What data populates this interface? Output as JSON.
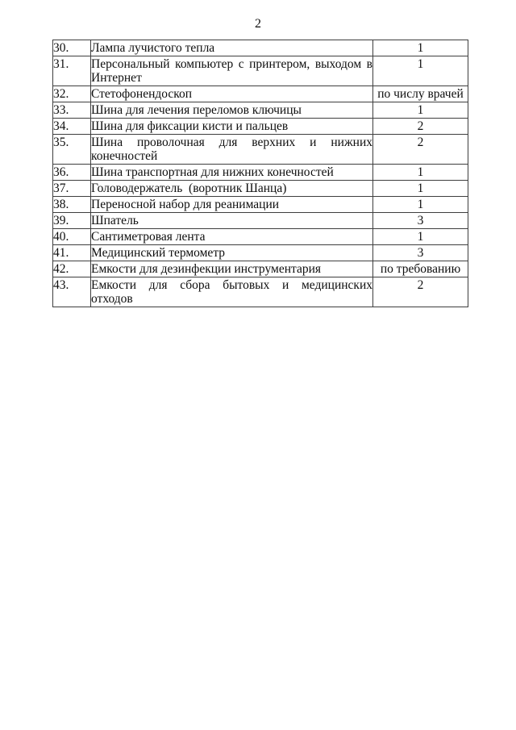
{
  "page": {
    "number": "2"
  },
  "table": {
    "rows": [
      {
        "num": "30.",
        "name_lines": [
          "Лампа лучистого тепла"
        ],
        "qty": "1"
      },
      {
        "num": "31.",
        "name_lines": [
          "Персональный компьютер с принтером, выходом в",
          "Интернет"
        ],
        "qty": "1"
      },
      {
        "num": "32.",
        "name_lines": [
          "Стетофонендоскоп"
        ],
        "qty": "по числу врачей"
      },
      {
        "num": "33.",
        "name_lines": [
          "Шина для лечения переломов ключицы"
        ],
        "qty": "1"
      },
      {
        "num": "34.",
        "name_lines": [
          "Шина для фиксации кисти и пальцев"
        ],
        "qty": "2"
      },
      {
        "num": "35.",
        "name_lines": [
          "Шина проволочная для верхних и нижних",
          "конечностей"
        ],
        "qty": "2"
      },
      {
        "num": "36.",
        "name_lines": [
          "Шина транспортная для нижних конечностей"
        ],
        "qty": "1"
      },
      {
        "num": "37.",
        "name_lines": [
          "Головодержатель  (воротник Шанца)"
        ],
        "qty": "1"
      },
      {
        "num": "38.",
        "name_lines": [
          "Переносной набор для реанимации"
        ],
        "qty": "1"
      },
      {
        "num": "39.",
        "name_lines": [
          "Шпатель"
        ],
        "qty": "3"
      },
      {
        "num": "40.",
        "name_lines": [
          "Сантиметровая лента"
        ],
        "qty": "1"
      },
      {
        "num": "41.",
        "name_lines": [
          "Медицинский термометр"
        ],
        "qty": "3"
      },
      {
        "num": "42.",
        "name_lines": [
          "Емкости для дезинфекции инструментария"
        ],
        "qty": "по требованию"
      },
      {
        "num": "43.",
        "name_lines": [
          "Емкости для сбора бытовых и медицинских",
          "отходов"
        ],
        "qty": "2"
      }
    ]
  }
}
